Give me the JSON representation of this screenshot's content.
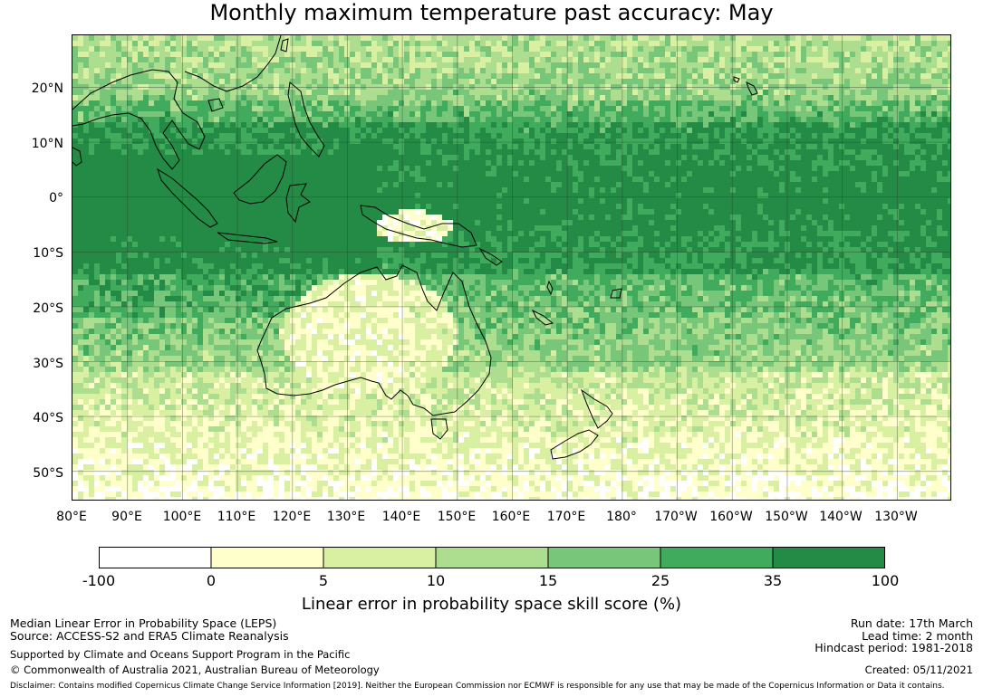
{
  "title": "Monthly maximum temperature past accuracy: May",
  "map": {
    "lat_labels": [
      "20°N",
      "10°N",
      "0°",
      "10°S",
      "20°S",
      "30°S",
      "40°S",
      "50°S"
    ],
    "lon_labels": [
      "80°E",
      "90°E",
      "100°E",
      "110°E",
      "120°E",
      "130°E",
      "140°E",
      "150°E",
      "160°E",
      "170°E",
      "180°",
      "170°W",
      "160°W",
      "150°W",
      "140°W",
      "130°W"
    ],
    "lon_range": [
      80,
      240
    ],
    "lat_range": [
      -55.5,
      29.5
    ]
  },
  "colorbar": {
    "ticks": [
      "-100",
      "0",
      "5",
      "10",
      "15",
      "25",
      "35",
      "100"
    ],
    "colors": [
      "#ffffff",
      "#ffffcc",
      "#d9f0a3",
      "#addd8e",
      "#78c679",
      "#41ab5d",
      "#238b45"
    ],
    "label": "Linear error in probability space skill score (%)"
  },
  "footer": {
    "left_line1": "Median Linear Error in Probability Space (LEPS)",
    "left_line2": "Source: ACCESS-S2 and ERA5 Climate Reanalysis",
    "left_line3": "Supported by Climate and Oceans Support Program in the Pacific",
    "left_line4": "© Commonwealth of Australia 2021, Australian Bureau of Meteorology",
    "right_line1": "Run date: 17th March",
    "right_line2": "Lead time: 2 month",
    "right_line3": "Hindcast period: 1981-2018",
    "right_line4": "Created: 05/11/2021",
    "disclaimer": "Disclaimer: Contains modified Copernicus Climate Change Service Information [2019]. Neither the European Commission nor ECMWF is responsible for any use that may be made of the Copernicus Information or Data it contains."
  }
}
